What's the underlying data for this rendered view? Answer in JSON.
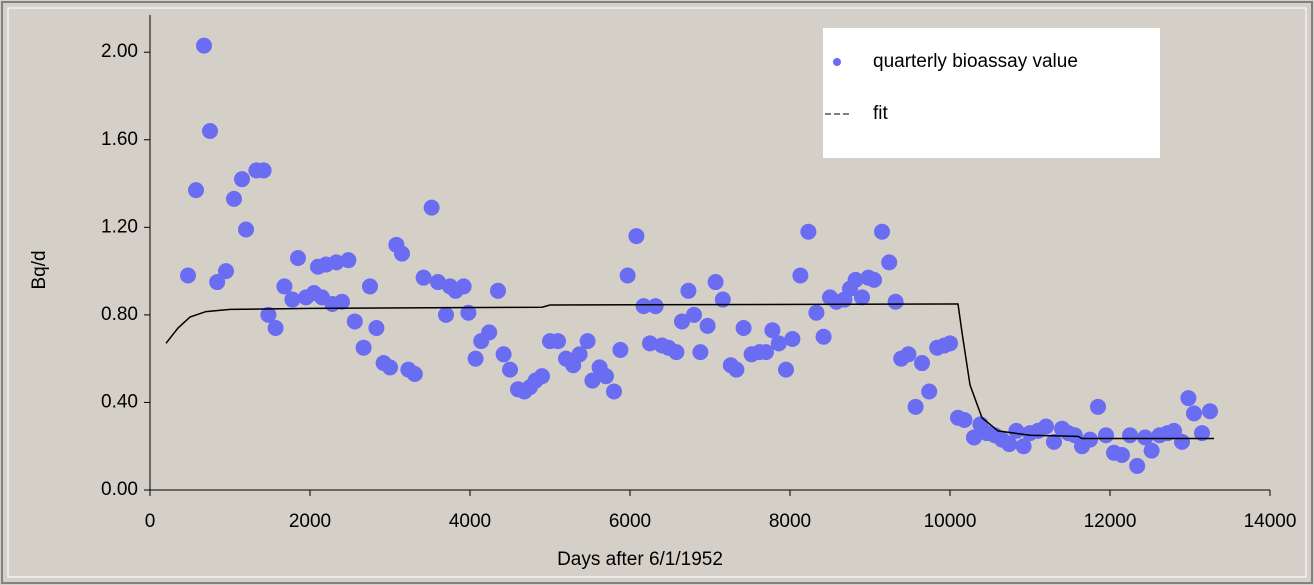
{
  "chart_data": {
    "type": "scatter",
    "x_label": "Days after 6/1/1952",
    "y_label": "Bq/d",
    "xlim": [
      0,
      14000
    ],
    "ylim": [
      0,
      2.17
    ],
    "xticks": [
      0,
      2000,
      4000,
      6000,
      8000,
      10000,
      12000,
      14000
    ],
    "yticks": [
      {
        "value": 0,
        "label": "0.00"
      },
      {
        "value": 0.4,
        "label": "0.40"
      },
      {
        "value": 0.8,
        "label": "0.80"
      },
      {
        "value": 1.2,
        "label": "1.20"
      },
      {
        "value": 1.6,
        "label": "1.60"
      },
      {
        "value": 2.0,
        "label": "2.00"
      }
    ],
    "legend": "upper right",
    "series": [
      {
        "name": "quarterly bioassay value",
        "color": "#6a6cf2",
        "x": [
          475,
          575,
          675,
          750,
          840,
          950,
          1050,
          1150,
          1200,
          1330,
          1420,
          1480,
          1570,
          1680,
          1780,
          1850,
          1950,
          2050,
          2100,
          2150,
          2200,
          2280,
          2330,
          2400,
          2480,
          2560,
          2670,
          2750,
          2830,
          2920,
          3000,
          3080,
          3150,
          3230,
          3310,
          3420,
          3520,
          3600,
          3700,
          3750,
          3820,
          3920,
          3980,
          4070,
          4140,
          4240,
          4350,
          4420,
          4500,
          4600,
          4680,
          4750,
          4820,
          4900,
          5000,
          5100,
          5200,
          5290,
          5370,
          5470,
          5530,
          5620,
          5700,
          5800,
          5880,
          5970,
          6080,
          6170,
          6250,
          6320,
          6400,
          6480,
          6580,
          6650,
          6730,
          6800,
          6880,
          6970,
          7070,
          7160,
          7260,
          7330,
          7420,
          7520,
          7620,
          7700,
          7780,
          7860,
          7950,
          8030,
          8130,
          8230,
          8330,
          8420,
          8500,
          8580,
          8680,
          8750,
          8820,
          8900,
          8980,
          9050,
          9150,
          9240,
          9320,
          9390,
          9480,
          9570,
          9650,
          9740,
          9840,
          9930,
          10000,
          10100,
          10180,
          10300,
          10380,
          10460,
          10560,
          10650,
          10740,
          10830,
          10920,
          11000,
          11100,
          11200,
          11300,
          11400,
          11480,
          11560,
          11650,
          11750,
          11850,
          11950,
          12050,
          12150,
          12250,
          12340,
          12440,
          12520,
          12620,
          12720,
          12800,
          12900,
          12980,
          13050,
          13150,
          13250
        ],
        "values": [
          0.98,
          1.37,
          2.03,
          1.64,
          0.95,
          1.0,
          1.33,
          1.42,
          1.19,
          1.46,
          1.46,
          0.8,
          0.74,
          0.93,
          0.87,
          1.06,
          0.88,
          0.9,
          1.02,
          0.88,
          1.03,
          0.85,
          1.04,
          0.86,
          1.05,
          0.77,
          0.65,
          0.93,
          0.74,
          0.58,
          0.56,
          1.12,
          1.08,
          0.55,
          0.53,
          0.97,
          1.29,
          0.95,
          0.8,
          0.93,
          0.91,
          0.93,
          0.81,
          0.6,
          0.68,
          0.72,
          0.91,
          0.62,
          0.55,
          0.46,
          0.45,
          0.47,
          0.5,
          0.52,
          0.68,
          0.68,
          0.6,
          0.57,
          0.62,
          0.68,
          0.5,
          0.56,
          0.52,
          0.45,
          0.64,
          0.98,
          1.16,
          0.84,
          0.67,
          0.84,
          0.66,
          0.65,
          0.63,
          0.77,
          0.91,
          0.8,
          0.63,
          0.75,
          0.95,
          0.87,
          0.57,
          0.55,
          0.74,
          0.62,
          0.63,
          0.63,
          0.73,
          0.67,
          0.55,
          0.69,
          0.98,
          1.18,
          0.81,
          0.7,
          0.88,
          0.86,
          0.87,
          0.92,
          0.96,
          0.88,
          0.97,
          0.96,
          1.18,
          1.04,
          0.86,
          0.6,
          0.62,
          0.38,
          0.58,
          0.45,
          0.65,
          0.66,
          0.67,
          0.33,
          0.32,
          0.24,
          0.3,
          0.26,
          0.25,
          0.23,
          0.21,
          0.27,
          0.2,
          0.26,
          0.27,
          0.29,
          0.22,
          0.28,
          0.26,
          0.25,
          0.2,
          0.23,
          0.38,
          0.25,
          0.17,
          0.16,
          0.25,
          0.11,
          0.24,
          0.18,
          0.25,
          0.26,
          0.27,
          0.22,
          0.42,
          0.35,
          0.26,
          0.36
        ]
      },
      {
        "name": "fit",
        "type": "line",
        "color": "#000000",
        "x": [
          200,
          350,
          500,
          700,
          1000,
          2000,
          4900,
          5000,
          10000,
          10100,
          10150,
          10250,
          10400,
          10600,
          11000,
          11600,
          11650,
          13300
        ],
        "values": [
          0.67,
          0.74,
          0.79,
          0.815,
          0.825,
          0.83,
          0.835,
          0.845,
          0.85,
          0.85,
          0.72,
          0.48,
          0.33,
          0.27,
          0.25,
          0.245,
          0.235,
          0.235
        ]
      }
    ]
  }
}
